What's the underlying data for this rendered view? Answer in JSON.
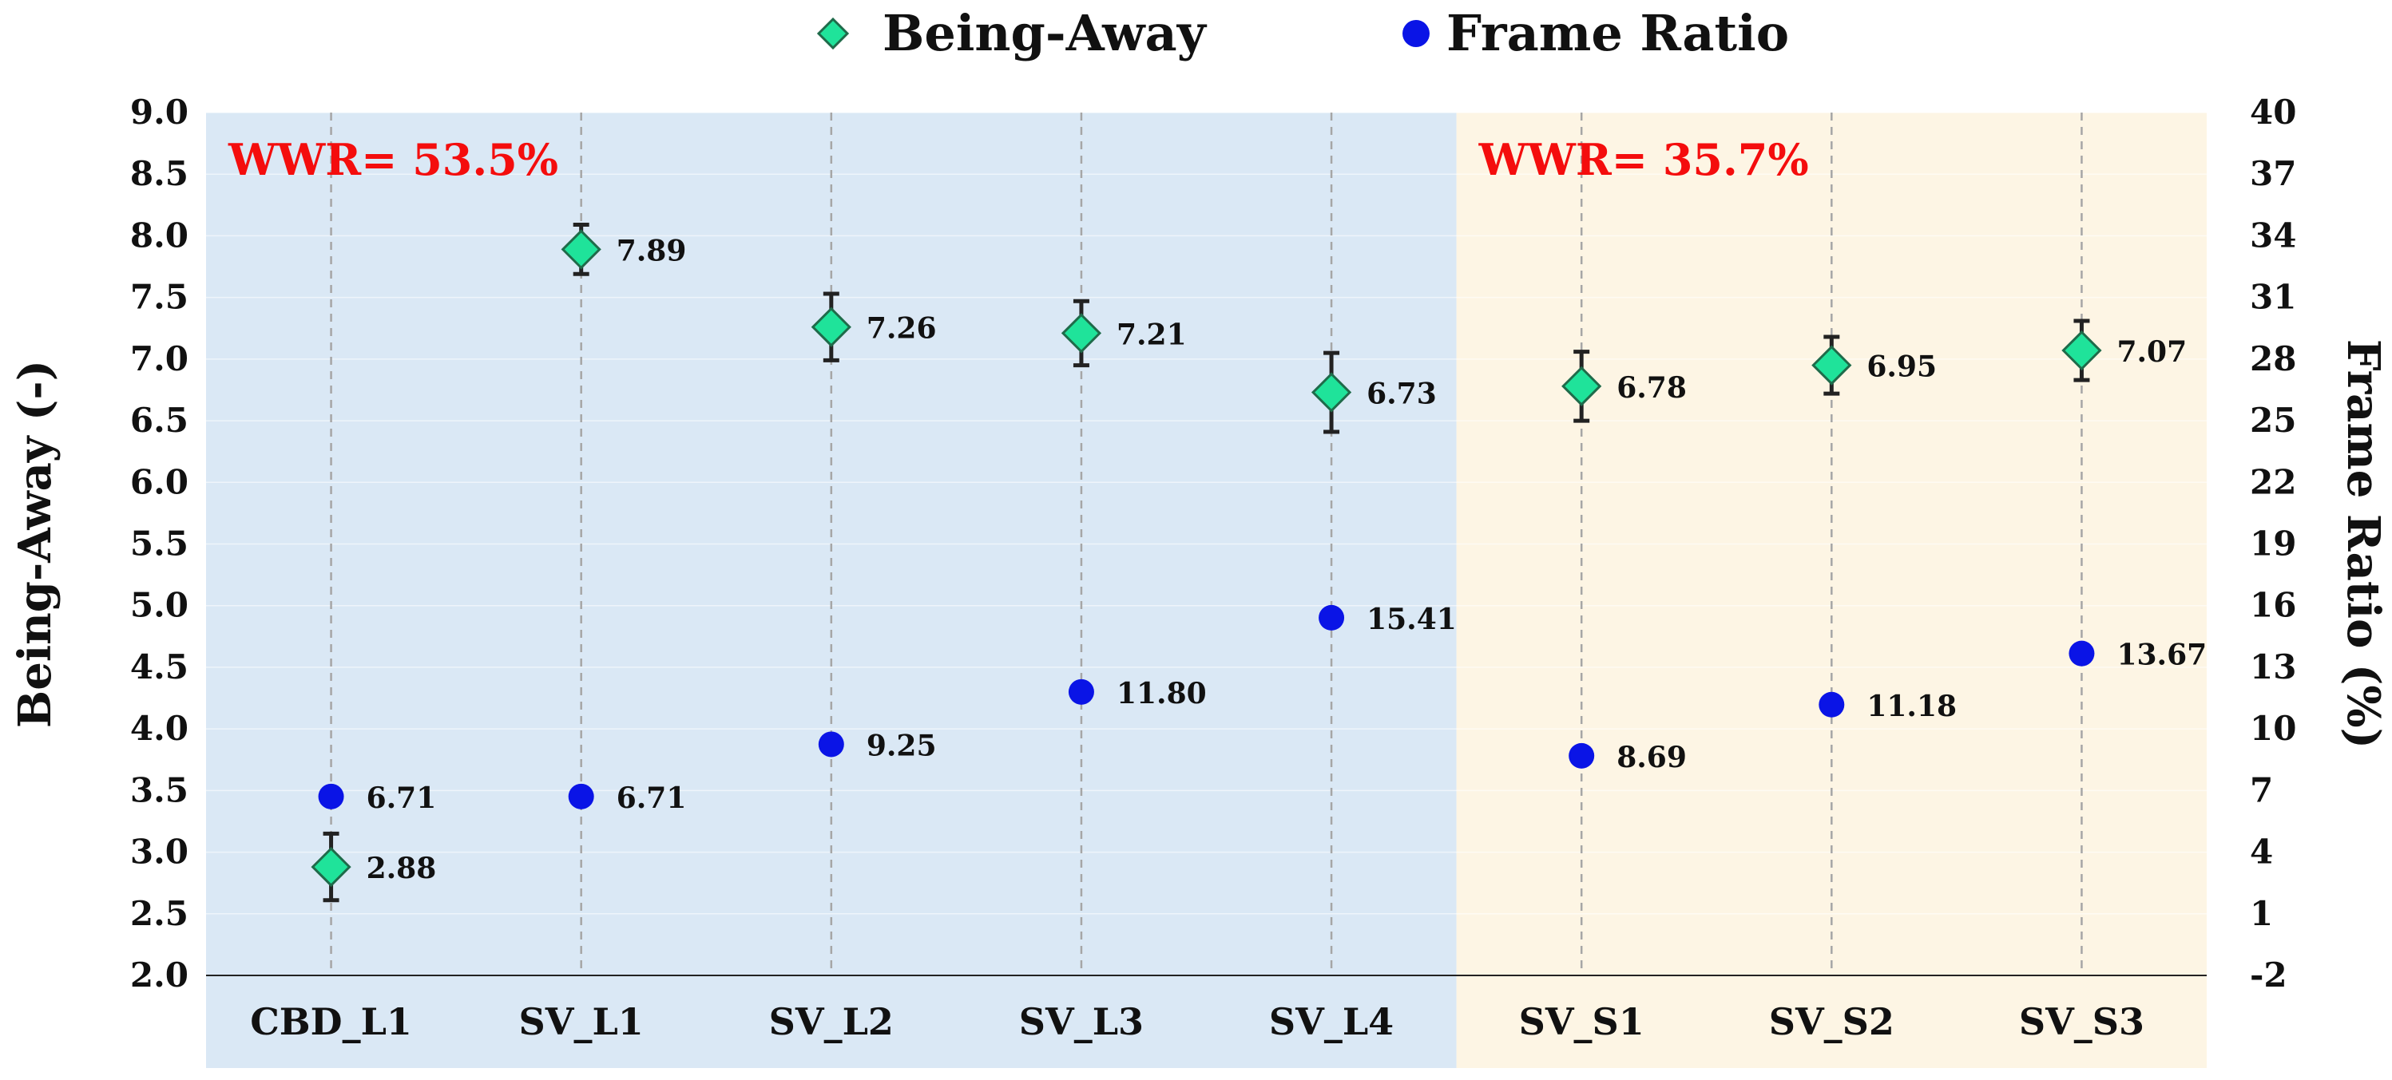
{
  "chart_data": {
    "type": "scatter",
    "categories": [
      "CBD_L1",
      "SV_L1",
      "SV_L2",
      "SV_L3",
      "SV_L4",
      "SV_S1",
      "SV_S2",
      "SV_S3"
    ],
    "series": [
      {
        "name": "Being-Away",
        "axis": "left",
        "marker": "diamond",
        "color": "#1fe39a",
        "values": [
          2.88,
          7.89,
          7.26,
          7.21,
          6.73,
          6.78,
          6.95,
          7.07
        ],
        "labels": [
          "2.88",
          "7.89",
          "7.26",
          "7.21",
          "6.73",
          "6.78",
          "6.95",
          "7.07"
        ],
        "error": [
          0.27,
          0.2,
          0.27,
          0.26,
          0.32,
          0.28,
          0.23,
          0.24
        ]
      },
      {
        "name": "Frame Ratio",
        "axis": "right",
        "marker": "circle",
        "color": "#0a14e6",
        "values": [
          6.71,
          6.71,
          9.25,
          11.8,
          15.41,
          8.69,
          11.18,
          13.67
        ],
        "labels": [
          "6.71",
          "6.71",
          "9.25",
          "11.80",
          "15.41",
          "8.69",
          "11.18",
          "13.67"
        ]
      }
    ],
    "ylabel_left": "Being-Away (-)",
    "ylabel_right": "Frame Ratio (%)",
    "ylim_left": [
      2.0,
      9.0
    ],
    "ylim_right": [
      -2,
      40
    ],
    "yticks_left": [
      "2.0",
      "2.5",
      "3.0",
      "3.5",
      "4.0",
      "4.5",
      "5.0",
      "5.5",
      "6.0",
      "6.5",
      "7.0",
      "7.5",
      "8.0",
      "8.5",
      "9.0"
    ],
    "yticks_right": [
      "-2",
      "1",
      "4",
      "7",
      "10",
      "13",
      "16",
      "19",
      "22",
      "25",
      "28",
      "31",
      "34",
      "37",
      "40"
    ],
    "regions": [
      {
        "label": "WWR= 53.5%",
        "from_category": "CBD_L1",
        "to_category": "SV_L4",
        "fill": "#dae8f5"
      },
      {
        "label": "WWR= 35.7%",
        "from_category": "SV_S1",
        "to_category": "SV_S3",
        "fill": "#fdf5e4"
      }
    ],
    "legend": [
      "Being-Away",
      "Frame Ratio"
    ],
    "legend_position": "top-center",
    "colors": {
      "region_label": "#f40d0d",
      "error_bar": "#222222",
      "gridline": "#a6a6a6"
    }
  }
}
